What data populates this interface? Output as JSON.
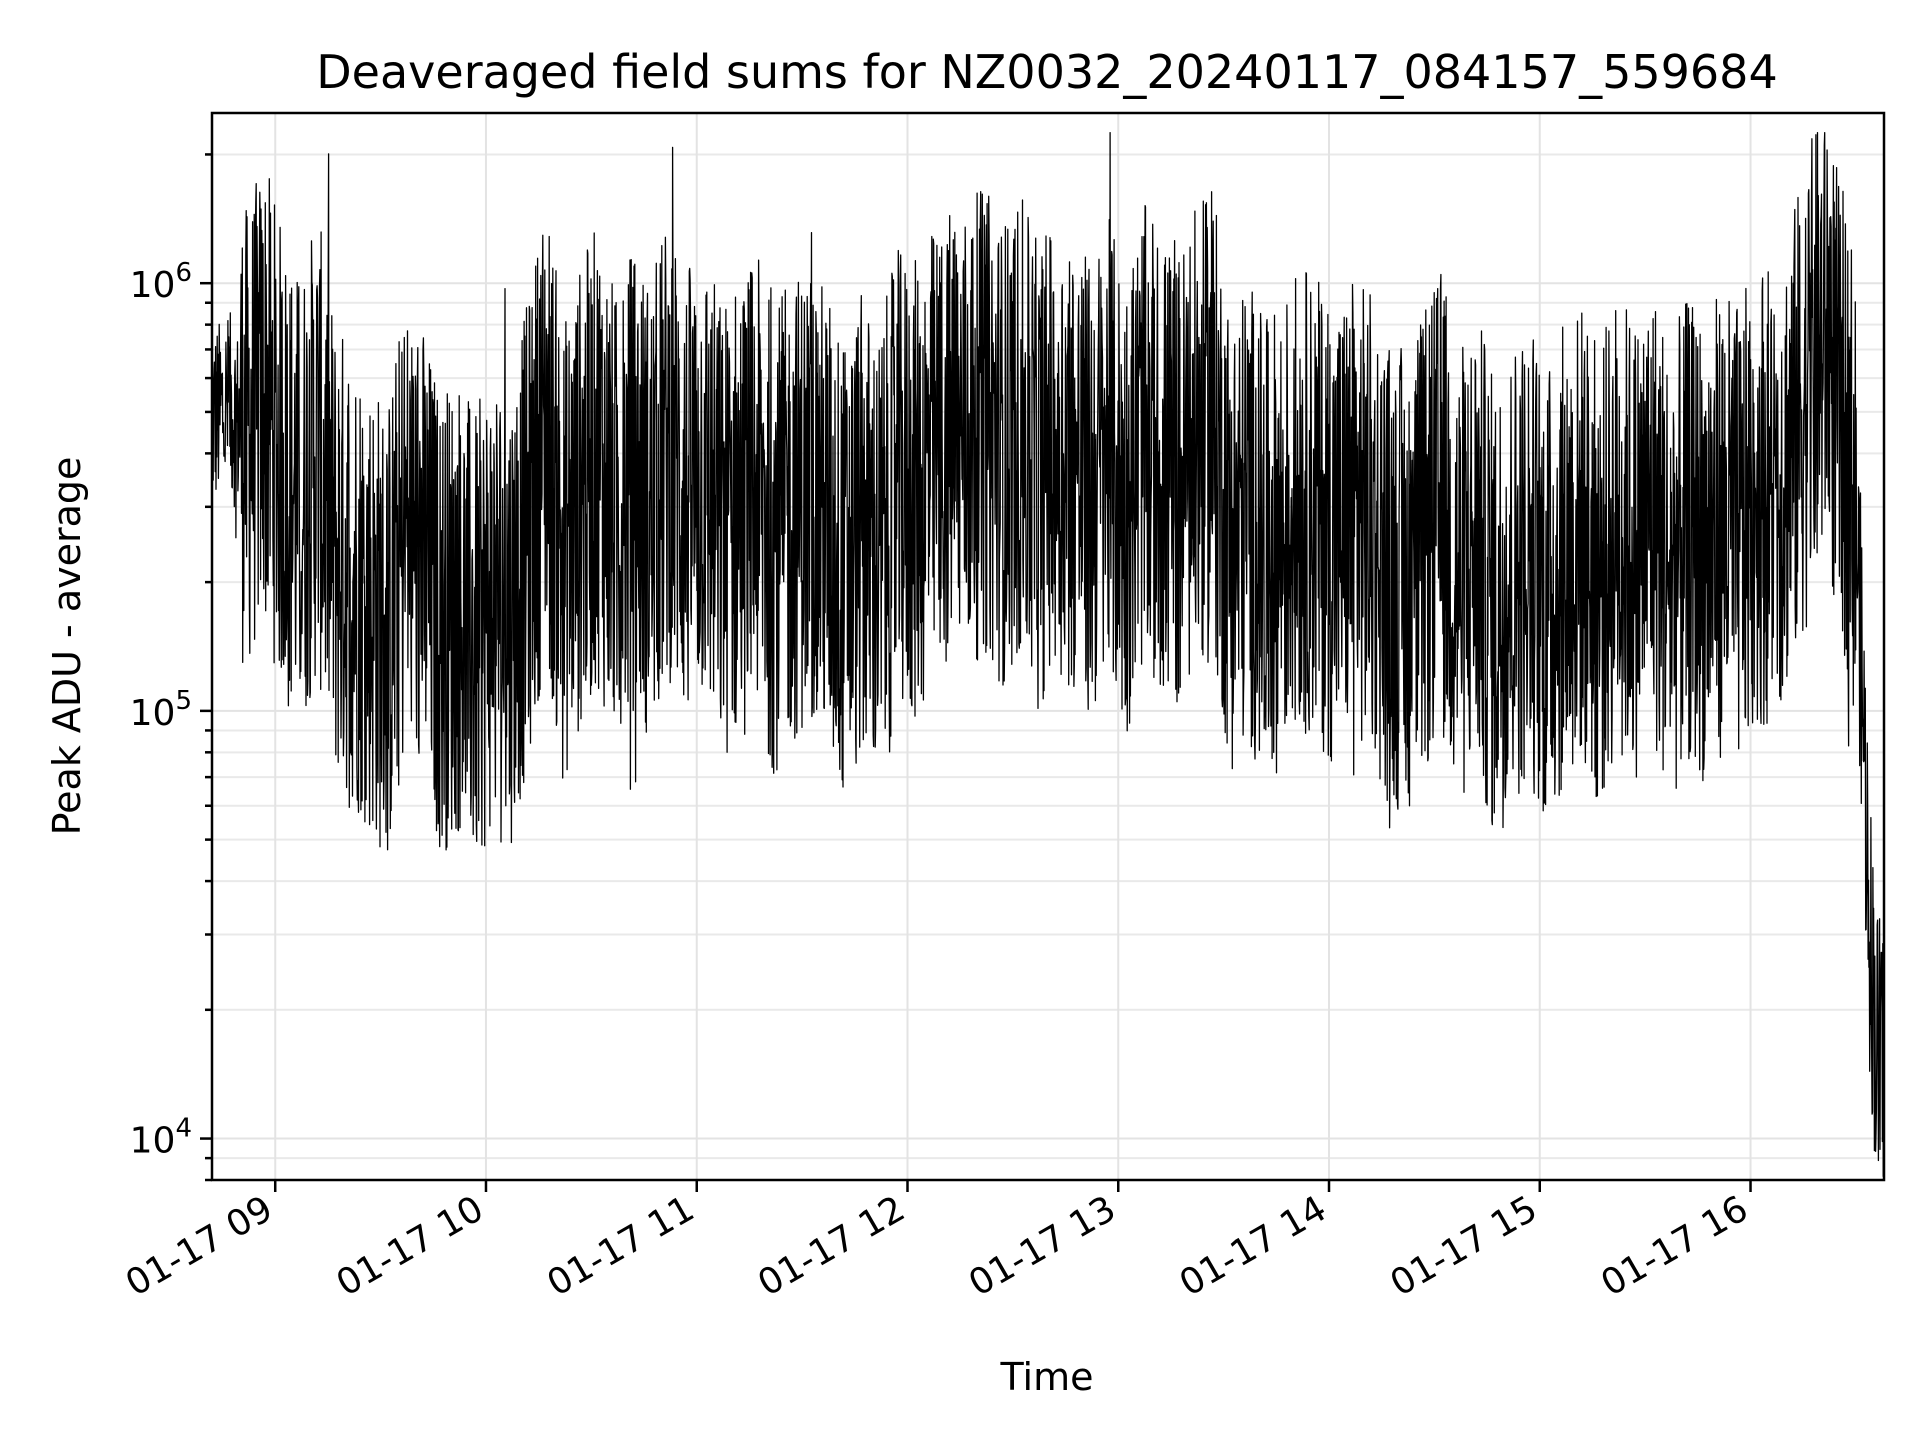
{
  "chart_data": {
    "type": "line",
    "title": "Deaveraged field sums for NZ0032_20240117_084157_559684",
    "xlabel": "Time",
    "ylabel": "Peak ADU - average",
    "yscale": "log",
    "ylim": [
      8000,
      2500000
    ],
    "xlim": [
      "2024-01-17 08:42",
      "2024-01-17 16:38"
    ],
    "grid": true,
    "xticks": [
      {
        "t": "2024-01-17 09:00",
        "label": "01-17 09"
      },
      {
        "t": "2024-01-17 10:00",
        "label": "01-17 10"
      },
      {
        "t": "2024-01-17 11:00",
        "label": "01-17 11"
      },
      {
        "t": "2024-01-17 12:00",
        "label": "01-17 12"
      },
      {
        "t": "2024-01-17 13:00",
        "label": "01-17 13"
      },
      {
        "t": "2024-01-17 14:00",
        "label": "01-17 14"
      },
      {
        "t": "2024-01-17 15:00",
        "label": "01-17 15"
      },
      {
        "t": "2024-01-17 16:00",
        "label": "01-17 16"
      }
    ],
    "yticks": [
      {
        "value": 10000,
        "base": "10",
        "exp": "4"
      },
      {
        "value": 100000,
        "base": "10",
        "exp": "5"
      },
      {
        "value": 1000000,
        "base": "10",
        "exp": "6"
      }
    ],
    "series": [
      {
        "color": "#000000",
        "x": [
          "2024-01-17 08:42",
          "2024-01-17 08:47",
          "2024-01-17 08:52",
          "2024-01-17 08:57",
          "2024-01-17 09:02",
          "2024-01-17 09:07",
          "2024-01-17 09:12",
          "2024-01-17 09:17",
          "2024-01-17 09:22",
          "2024-01-17 09:27",
          "2024-01-17 09:32",
          "2024-01-17 09:37",
          "2024-01-17 09:42",
          "2024-01-17 09:47",
          "2024-01-17 09:52",
          "2024-01-17 09:57",
          "2024-01-17 10:02",
          "2024-01-17 10:07",
          "2024-01-17 10:12",
          "2024-01-17 10:17",
          "2024-01-17 10:22",
          "2024-01-17 10:27",
          "2024-01-17 10:32",
          "2024-01-17 10:37",
          "2024-01-17 10:42",
          "2024-01-17 10:47",
          "2024-01-17 10:52",
          "2024-01-17 10:57",
          "2024-01-17 11:02",
          "2024-01-17 11:07",
          "2024-01-17 11:12",
          "2024-01-17 11:17",
          "2024-01-17 11:22",
          "2024-01-17 11:27",
          "2024-01-17 11:32",
          "2024-01-17 11:37",
          "2024-01-17 11:42",
          "2024-01-17 11:47",
          "2024-01-17 11:52",
          "2024-01-17 11:57",
          "2024-01-17 12:02",
          "2024-01-17 12:07",
          "2024-01-17 12:12",
          "2024-01-17 12:17",
          "2024-01-17 12:22",
          "2024-01-17 12:27",
          "2024-01-17 12:32",
          "2024-01-17 12:37",
          "2024-01-17 12:42",
          "2024-01-17 12:47",
          "2024-01-17 12:52",
          "2024-01-17 12:57",
          "2024-01-17 13:02",
          "2024-01-17 13:07",
          "2024-01-17 13:12",
          "2024-01-17 13:17",
          "2024-01-17 13:22",
          "2024-01-17 13:27",
          "2024-01-17 13:32",
          "2024-01-17 13:37",
          "2024-01-17 13:42",
          "2024-01-17 13:47",
          "2024-01-17 13:52",
          "2024-01-17 13:57",
          "2024-01-17 14:02",
          "2024-01-17 14:07",
          "2024-01-17 14:12",
          "2024-01-17 14:17",
          "2024-01-17 14:22",
          "2024-01-17 14:27",
          "2024-01-17 14:32",
          "2024-01-17 14:37",
          "2024-01-17 14:42",
          "2024-01-17 14:47",
          "2024-01-17 14:52",
          "2024-01-17 14:57",
          "2024-01-17 15:02",
          "2024-01-17 15:07",
          "2024-01-17 15:12",
          "2024-01-17 15:17",
          "2024-01-17 15:22",
          "2024-01-17 15:27",
          "2024-01-17 15:32",
          "2024-01-17 15:37",
          "2024-01-17 15:42",
          "2024-01-17 15:47",
          "2024-01-17 15:52",
          "2024-01-17 15:57",
          "2024-01-17 16:02",
          "2024-01-17 16:07",
          "2024-01-17 16:12",
          "2024-01-17 16:17",
          "2024-01-17 16:22",
          "2024-01-17 16:25",
          "2024-01-17 16:28",
          "2024-01-17 16:30",
          "2024-01-17 16:32",
          "2024-01-17 16:34",
          "2024-01-17 16:36",
          "2024-01-17 16:38"
        ],
        "y": [
          480000,
          520000,
          430000,
          560000,
          380000,
          300000,
          420000,
          240000,
          210000,
          180000,
          150000,
          270000,
          230000,
          160000,
          180000,
          140000,
          190000,
          170000,
          260000,
          480000,
          230000,
          320000,
          400000,
          270000,
          350000,
          290000,
          420000,
          310000,
          360000,
          260000,
          300000,
          330000,
          250000,
          290000,
          330000,
          280000,
          210000,
          270000,
          220000,
          340000,
          320000,
          380000,
          430000,
          440000,
          480000,
          400000,
          460000,
          350000,
          430000,
          390000,
          320000,
          410000,
          300000,
          440000,
          370000,
          340000,
          420000,
          470000,
          250000,
          300000,
          230000,
          270000,
          320000,
          290000,
          260000,
          300000,
          270000,
          210000,
          200000,
          240000,
          310000,
          200000,
          250000,
          170000,
          210000,
          240000,
          180000,
          230000,
          260000,
          200000,
          280000,
          240000,
          300000,
          210000,
          260000,
          240000,
          280000,
          250000,
          330000,
          320000,
          420000,
          600000,
          800000,
          500000,
          420000,
          300000,
          100000,
          30000,
          16000,
          14000
        ]
      }
    ]
  }
}
